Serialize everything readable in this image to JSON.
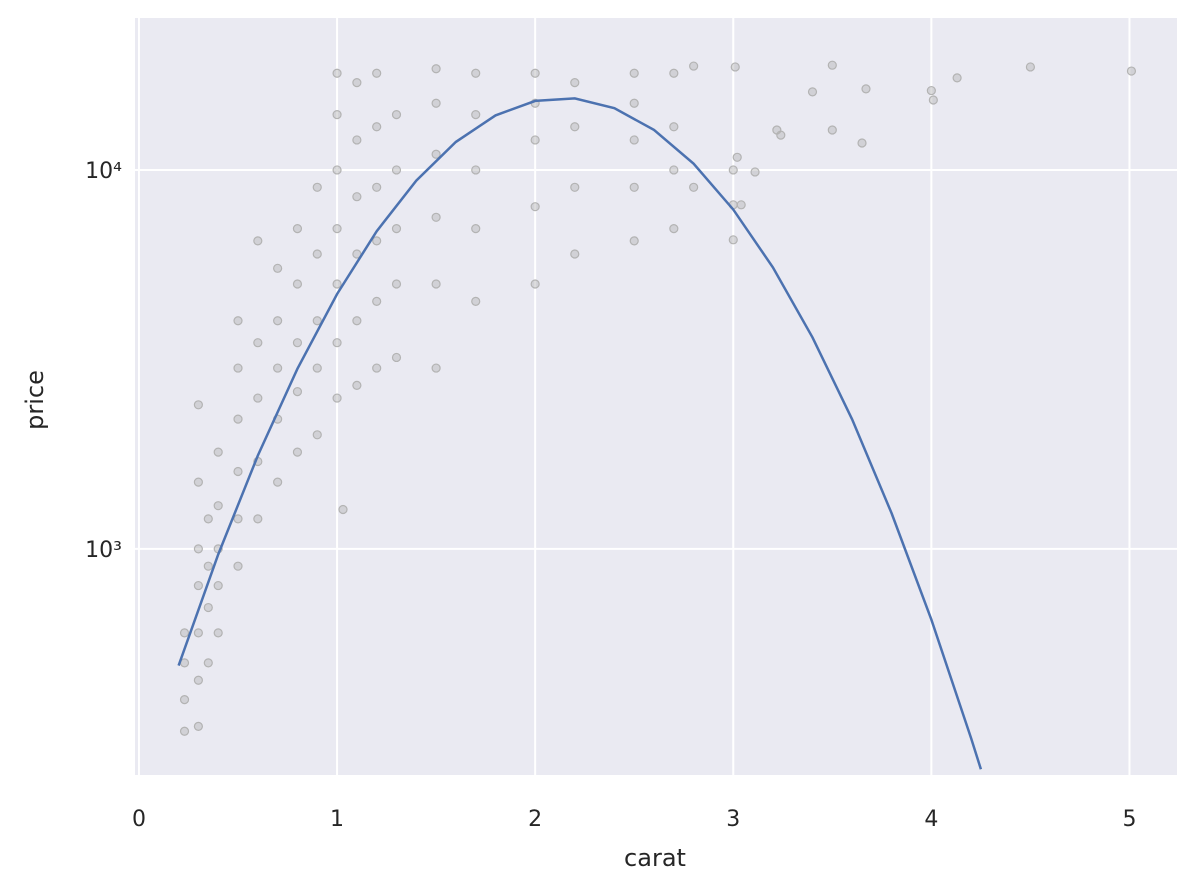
{
  "chart_data": {
    "type": "scatter",
    "xlabel": "carat",
    "ylabel": "price",
    "xlim": [
      -0.02,
      5.24
    ],
    "ylim": [
      253,
      25180
    ],
    "log_y": true,
    "grid": true,
    "background": "#eaeaf2",
    "xticks": [
      0,
      1,
      2,
      3,
      4,
      5
    ],
    "yticks": [
      {
        "value": 1000,
        "label": "10³"
      },
      {
        "value": 10000,
        "label": "10⁴"
      }
    ],
    "series": [
      {
        "type": "scatter",
        "color": "#b3b3b3",
        "x": [
          0.23,
          0.23,
          0.23,
          0.23,
          0.3,
          0.3,
          0.3,
          0.3,
          0.3,
          0.3,
          0.3,
          0.35,
          0.35,
          0.35,
          0.35,
          0.4,
          0.4,
          0.4,
          0.4,
          0.4,
          0.5,
          0.5,
          0.5,
          0.5,
          0.5,
          0.5,
          0.6,
          0.6,
          0.6,
          0.6,
          0.6,
          0.7,
          0.7,
          0.7,
          0.7,
          0.7,
          0.8,
          0.8,
          0.8,
          0.8,
          0.8,
          0.9,
          0.9,
          0.9,
          0.9,
          0.9,
          1.0,
          1.0,
          1.0,
          1.0,
          1.0,
          1.0,
          1.0,
          1.03,
          1.1,
          1.1,
          1.1,
          1.1,
          1.1,
          1.1,
          1.2,
          1.2,
          1.2,
          1.2,
          1.2,
          1.2,
          1.3,
          1.3,
          1.3,
          1.3,
          1.3,
          1.5,
          1.5,
          1.5,
          1.5,
          1.5,
          1.5,
          1.7,
          1.7,
          1.7,
          1.7,
          1.7,
          2.0,
          2.0,
          2.0,
          2.0,
          2.0,
          2.2,
          2.2,
          2.2,
          2.2,
          2.5,
          2.5,
          2.5,
          2.5,
          2.5,
          2.7,
          2.7,
          2.7,
          2.7,
          2.8,
          2.8,
          3.0,
          3.0,
          3.0,
          3.01,
          3.02,
          3.04,
          3.11,
          3.22,
          3.24,
          3.4,
          3.5,
          3.5,
          3.65,
          3.67,
          4.0,
          4.01,
          4.13,
          4.5,
          5.01
        ],
        "values": [
          330,
          400,
          500,
          600,
          340,
          450,
          600,
          800,
          1000,
          1500,
          2400,
          500,
          700,
          900,
          1200,
          600,
          800,
          1000,
          1300,
          1800,
          900,
          1200,
          1600,
          2200,
          3000,
          4000,
          1200,
          1700,
          2500,
          3500,
          6500,
          1500,
          2200,
          3000,
          4000,
          5500,
          1800,
          2600,
          3500,
          5000,
          7000,
          2000,
          3000,
          4000,
          6000,
          9000,
          2500,
          3500,
          5000,
          7000,
          10000,
          14000,
          18000,
          1270,
          2700,
          4000,
          6000,
          8500,
          12000,
          17000,
          3000,
          4500,
          6500,
          9000,
          13000,
          18000,
          3200,
          5000,
          7000,
          10000,
          14000,
          3000,
          5000,
          7500,
          11000,
          15000,
          18500,
          4500,
          7000,
          10000,
          14000,
          18000,
          5000,
          8000,
          12000,
          15000,
          18000,
          6000,
          9000,
          13000,
          17000,
          6500,
          9000,
          12000,
          15000,
          18000,
          7000,
          10000,
          13000,
          18000,
          9000,
          18800,
          10000,
          8090,
          6540,
          18700,
          10800,
          8090,
          9880,
          12750,
          12360,
          16070,
          18900,
          12750,
          11780,
          16370,
          16200,
          15300,
          17500,
          18700,
          18240
        ]
      },
      {
        "type": "line",
        "color": "#4c72b0",
        "x": [
          0.2,
          0.4,
          0.6,
          0.8,
          1.0,
          1.2,
          1.4,
          1.6,
          1.8,
          2.0,
          2.2,
          2.4,
          2.6,
          2.8,
          3.0,
          3.2,
          3.4,
          3.6,
          3.8,
          4.0,
          4.2,
          4.25
        ],
        "values": [
          492,
          966,
          1762,
          2987,
          4707,
          6891,
          9376,
          11858,
          13932,
          15210,
          15450,
          14550,
          12760,
          10390,
          7860,
          5530,
          3614,
          2197,
          1240,
          650,
          317,
          262
        ]
      }
    ]
  }
}
